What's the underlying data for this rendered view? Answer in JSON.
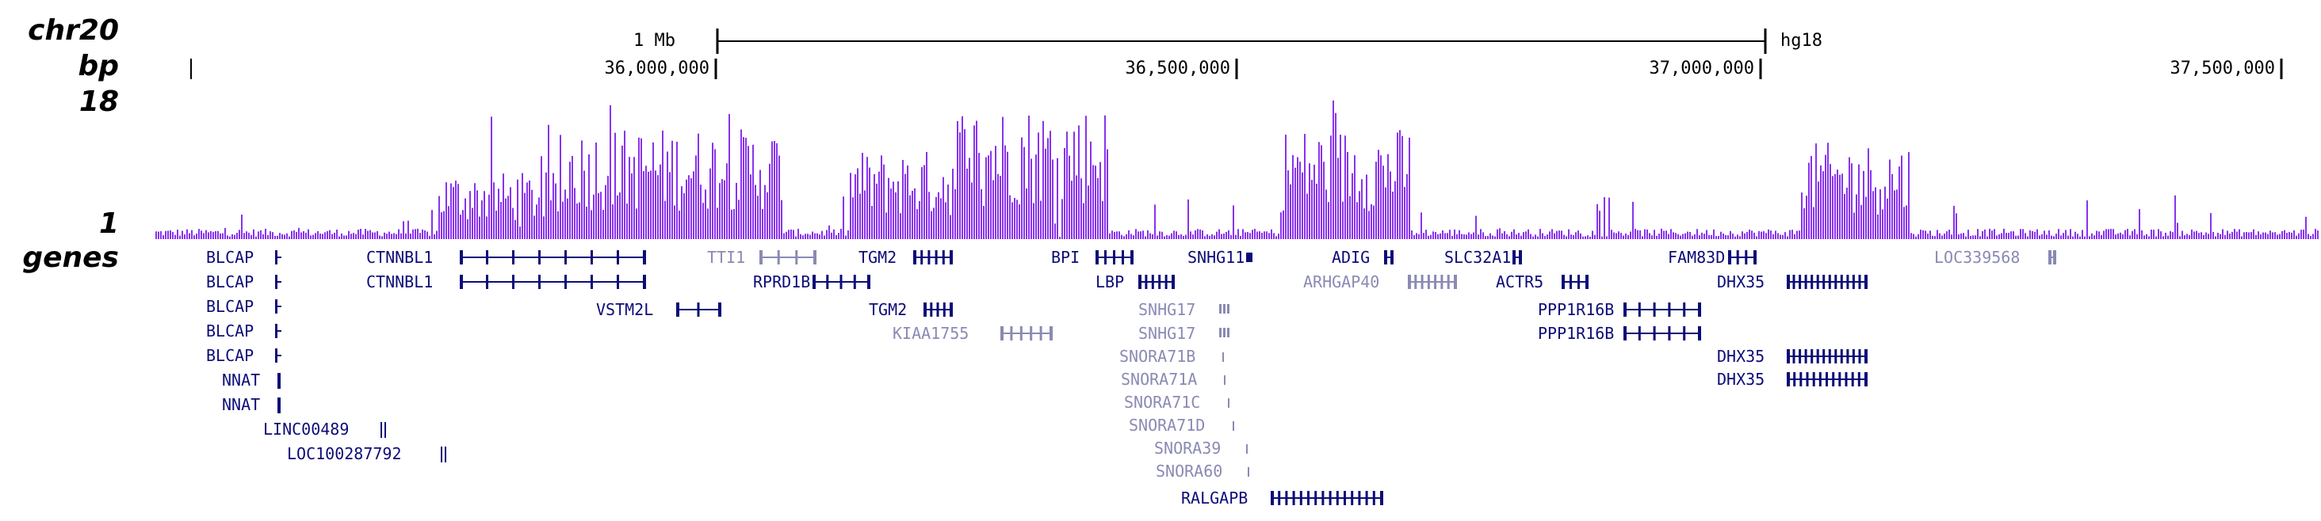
{
  "track_labels": {
    "chrom": "chr20",
    "bp": "bp",
    "max": "18",
    "min": "1",
    "genes": "genes"
  },
  "scale_bar": {
    "label": "1 Mb",
    "assembly": "hg18"
  },
  "ruler": {
    "ticks": [
      "36,000,000",
      "36,500,000",
      "37,000,000",
      "37,500,000"
    ]
  },
  "colors": {
    "signal": "#8833ee",
    "gene_dark": "#0c0c78",
    "gene_light": "#8a8ab4",
    "axis": "#000000"
  },
  "signal_profile": {
    "baseline": 1,
    "max": 18,
    "enriched_regions": [
      {
        "from": 0.13,
        "to": 0.19,
        "level": 0.45
      },
      {
        "from": 0.19,
        "to": 0.29,
        "level": 0.75
      },
      {
        "from": 0.32,
        "to": 0.37,
        "level": 0.6
      },
      {
        "from": 0.37,
        "to": 0.44,
        "level": 0.9
      },
      {
        "from": 0.52,
        "to": 0.58,
        "level": 0.75
      },
      {
        "from": 0.76,
        "to": 0.81,
        "level": 0.65
      }
    ]
  },
  "genes": [
    {
      "name": "BLCAP",
      "style": "dark"
    },
    {
      "name": "BLCAP",
      "style": "dark"
    },
    {
      "name": "BLCAP",
      "style": "dark"
    },
    {
      "name": "BLCAP",
      "style": "dark"
    },
    {
      "name": "BLCAP",
      "style": "dark"
    },
    {
      "name": "NNAT",
      "style": "dark"
    },
    {
      "name": "NNAT",
      "style": "dark"
    },
    {
      "name": "LINC00489",
      "style": "dark"
    },
    {
      "name": "LOC100287792",
      "style": "dark"
    },
    {
      "name": "CTNNBL1",
      "style": "dark"
    },
    {
      "name": "CTNNBL1",
      "style": "dark"
    },
    {
      "name": "VSTM2L",
      "style": "dark"
    },
    {
      "name": "TTI1",
      "style": "light"
    },
    {
      "name": "RPRD1B",
      "style": "dark"
    },
    {
      "name": "TGM2",
      "style": "dark"
    },
    {
      "name": "TGM2",
      "style": "dark"
    },
    {
      "name": "KIAA1755",
      "style": "light"
    },
    {
      "name": "BPI",
      "style": "dark"
    },
    {
      "name": "LBP",
      "style": "dark"
    },
    {
      "name": "SNHG11",
      "style": "dark"
    },
    {
      "name": "SNHG17",
      "style": "light"
    },
    {
      "name": "SNHG17",
      "style": "light"
    },
    {
      "name": "SNORA71B",
      "style": "light"
    },
    {
      "name": "SNORA71A",
      "style": "light"
    },
    {
      "name": "SNORA71C",
      "style": "light"
    },
    {
      "name": "SNORA71D",
      "style": "light"
    },
    {
      "name": "SNORA39",
      "style": "light"
    },
    {
      "name": "SNORA60",
      "style": "light"
    },
    {
      "name": "RALGAPB",
      "style": "dark"
    },
    {
      "name": "ADIG",
      "style": "dark"
    },
    {
      "name": "ARHGAP40",
      "style": "light"
    },
    {
      "name": "SLC32A1",
      "style": "dark"
    },
    {
      "name": "ACTR5",
      "style": "dark"
    },
    {
      "name": "PPP1R16B",
      "style": "dark"
    },
    {
      "name": "PPP1R16B",
      "style": "dark"
    },
    {
      "name": "FAM83D",
      "style": "dark"
    },
    {
      "name": "DHX35",
      "style": "dark"
    },
    {
      "name": "DHX35",
      "style": "dark"
    },
    {
      "name": "DHX35",
      "style": "dark"
    },
    {
      "name": "LOC339568",
      "style": "light"
    }
  ]
}
